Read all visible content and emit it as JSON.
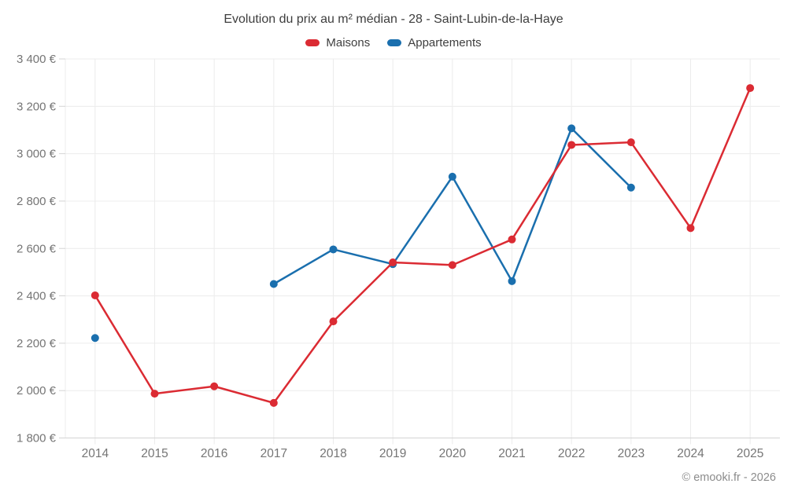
{
  "page": {
    "footer": "© emooki.fr - 2026"
  },
  "chart_data": {
    "type": "line",
    "title": "Evolution du prix au m² médian - 28 - Saint-Lubin-de-la-Haye",
    "legend_position": "top",
    "grid": true,
    "categories": [
      "2014",
      "2015",
      "2016",
      "2017",
      "2018",
      "2019",
      "2020",
      "2021",
      "2022",
      "2023",
      "2024",
      "2025"
    ],
    "series": [
      {
        "name": "Maisons",
        "color": "#db2b33",
        "values": [
          2402,
          1987,
          2018,
          1948,
          2292,
          2541,
          2530,
          2638,
          3037,
          3048,
          2686,
          3277
        ]
      },
      {
        "name": "Appartements",
        "color": "#1a6fae",
        "values": [
          2222,
          null,
          null,
          2450,
          2596,
          2534,
          2903,
          2462,
          3107,
          2857,
          null,
          null
        ]
      }
    ],
    "y_axis": {
      "min": 1800,
      "max": 3400,
      "step": 200,
      "unit": "€",
      "tick_labels": [
        "1 800 €",
        "2 000 €",
        "2 200 €",
        "2 400 €",
        "2 600 €",
        "2 800 €",
        "3 000 €",
        "3 200 €",
        "3 400 €"
      ]
    }
  }
}
